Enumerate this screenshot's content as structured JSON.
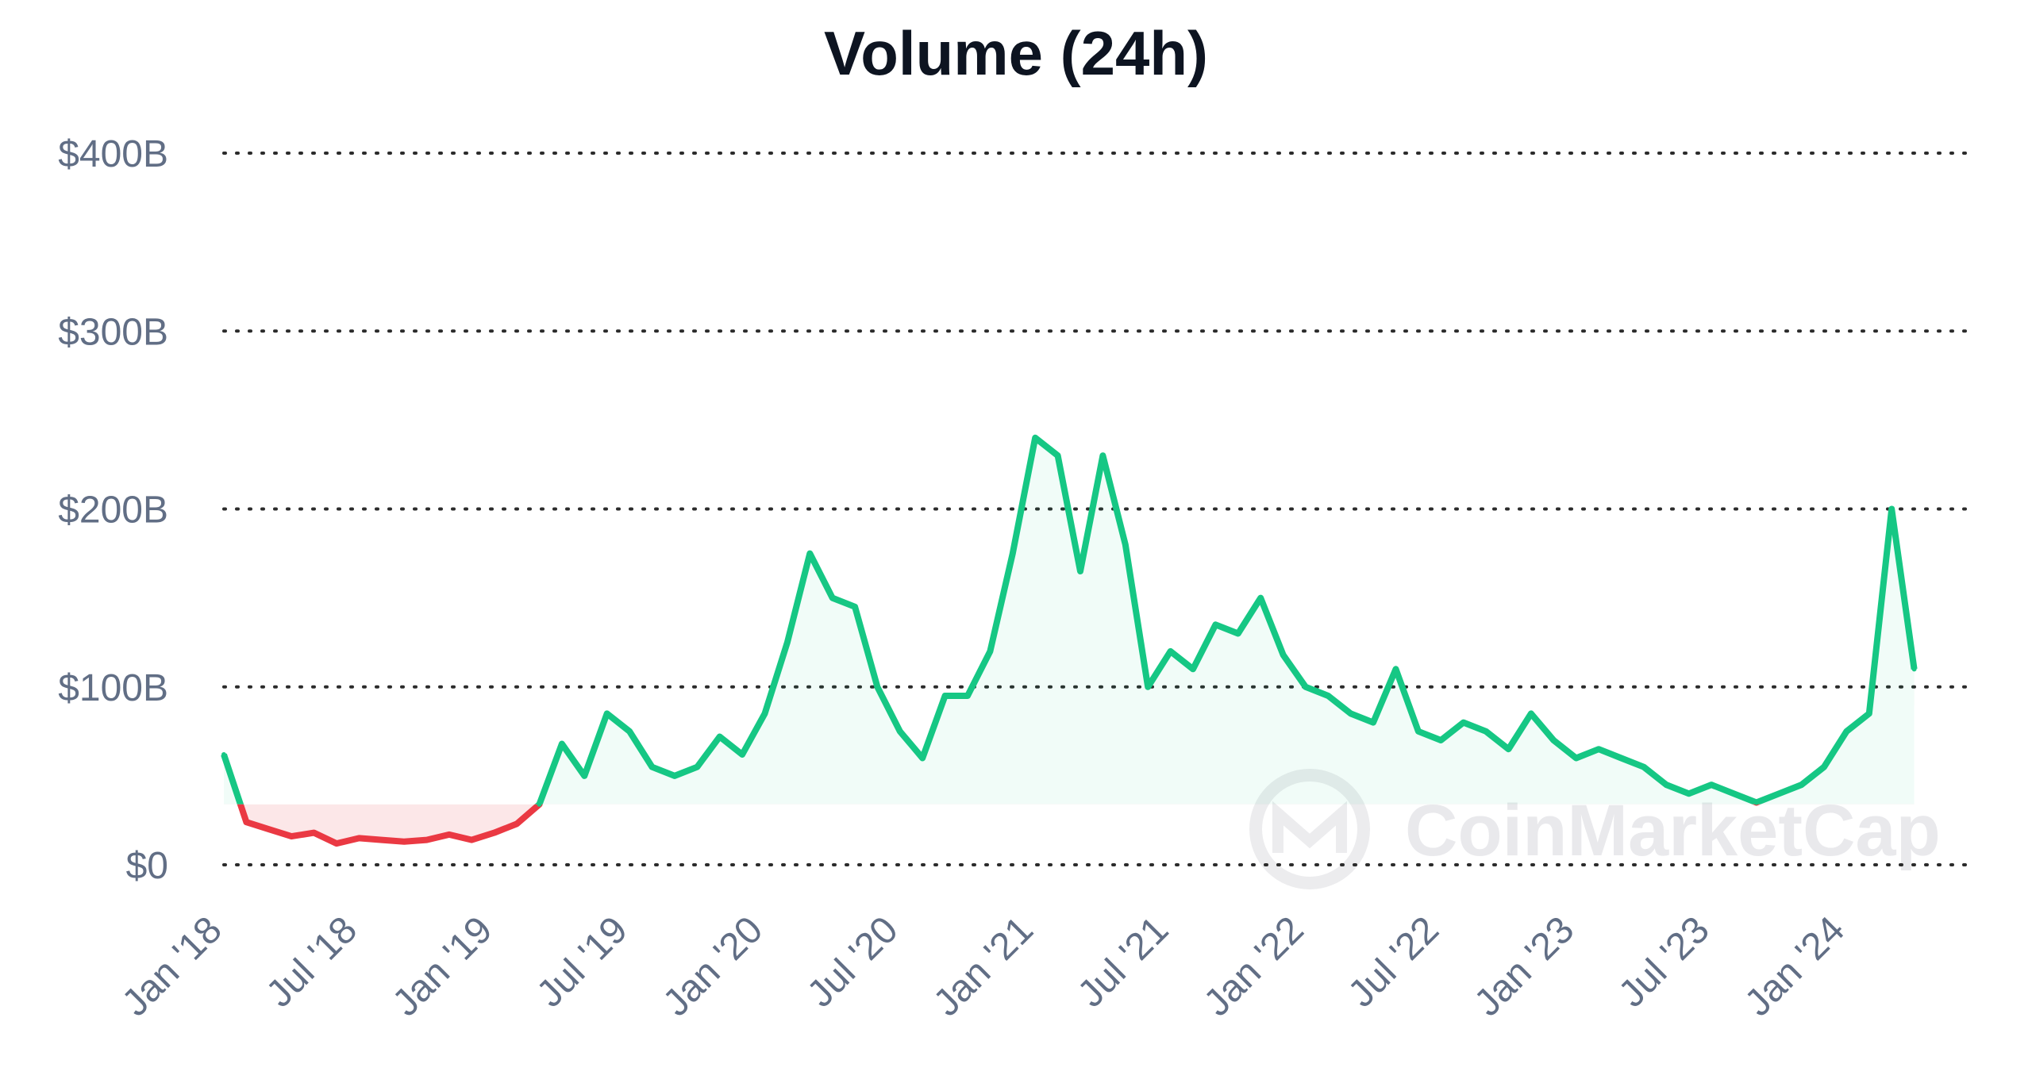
{
  "chart_data": {
    "type": "area",
    "title": "Volume (24h)",
    "xlabel": "",
    "ylabel": "",
    "ylim": [
      0,
      400
    ],
    "y_unit": "B USD",
    "y_ticks": [
      {
        "value": 0,
        "label": "$0"
      },
      {
        "value": 100,
        "label": "$100B"
      },
      {
        "value": 200,
        "label": "$200B"
      },
      {
        "value": 300,
        "label": "$300B"
      },
      {
        "value": 400,
        "label": "$400B"
      }
    ],
    "x_ticks": [
      "Jan '18",
      "Jul '18",
      "Jan '19",
      "Jul '19",
      "Jan '20",
      "Jul '20",
      "Jan '21",
      "Jul '21",
      "Jan '22",
      "Jul '22",
      "Jan '23",
      "Jul '23",
      "Jan '24"
    ],
    "baseline": 34,
    "grid": "horizontal dotted",
    "colors": {
      "above_baseline": "#16c784",
      "below_baseline": "#ea3943",
      "grid": "#2b2b2b",
      "tick_label": "#616e85",
      "title": "#0d1421"
    },
    "series": [
      {
        "x": [
          "2018-01",
          "2018-02",
          "2018-03",
          "2018-04",
          "2018-05",
          "2018-06",
          "2018-07",
          "2018-08",
          "2018-09",
          "2018-10",
          "2018-11",
          "2018-12",
          "2019-01",
          "2019-02",
          "2019-03",
          "2019-04",
          "2019-05",
          "2019-06",
          "2019-07",
          "2019-08",
          "2019-09",
          "2019-10",
          "2019-11",
          "2019-12",
          "2020-01",
          "2020-02",
          "2020-03",
          "2020-04",
          "2020-05",
          "2020-06",
          "2020-07",
          "2020-08",
          "2020-09",
          "2020-10",
          "2020-11",
          "2020-12",
          "2021-01",
          "2021-02",
          "2021-03",
          "2021-04",
          "2021-05",
          "2021-06",
          "2021-07",
          "2021-08",
          "2021-09",
          "2021-10",
          "2021-11",
          "2021-12",
          "2022-01",
          "2022-02",
          "2022-03",
          "2022-04",
          "2022-05",
          "2022-06",
          "2022-07",
          "2022-08",
          "2022-09",
          "2022-10",
          "2022-11",
          "2022-12",
          "2023-01",
          "2023-02",
          "2023-03",
          "2023-04",
          "2023-05",
          "2023-06",
          "2023-07",
          "2023-08",
          "2023-09",
          "2023-10",
          "2023-11",
          "2023-12",
          "2024-01",
          "2024-02",
          "2024-03",
          "2024-04"
        ],
        "values": [
          62,
          24,
          20,
          16,
          18,
          12,
          15,
          14,
          13,
          14,
          17,
          14,
          18,
          23,
          34,
          68,
          50,
          85,
          75,
          55,
          50,
          55,
          72,
          62,
          85,
          125,
          175,
          150,
          145,
          100,
          75,
          60,
          95,
          95,
          120,
          175,
          240,
          230,
          165,
          230,
          180,
          100,
          120,
          110,
          135,
          130,
          150,
          118,
          100,
          95,
          85,
          80,
          110,
          75,
          70,
          80,
          75,
          65,
          85,
          70,
          60,
          65,
          60,
          55,
          45,
          40,
          45,
          40,
          35,
          40,
          45,
          55,
          75,
          85,
          200,
          110
        ]
      }
    ]
  },
  "watermark": {
    "text": "CoinMarketCap"
  }
}
